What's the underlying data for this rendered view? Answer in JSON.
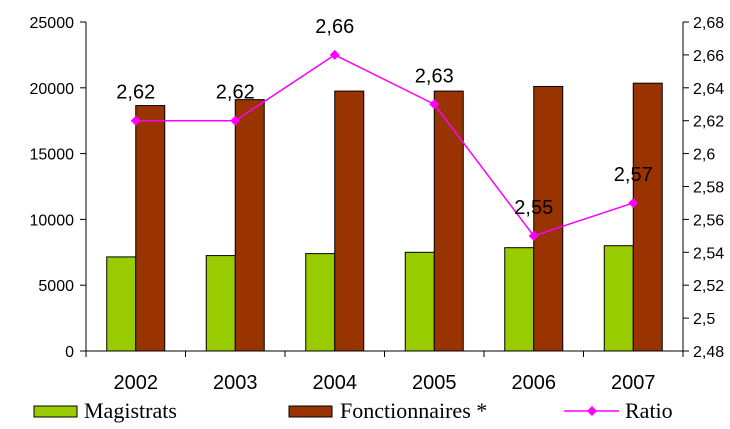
{
  "chart_data": {
    "type": "bar",
    "categories": [
      "2002",
      "2003",
      "2004",
      "2005",
      "2006",
      "2007"
    ],
    "series": [
      {
        "name": "Magistrats",
        "type": "bar",
        "axis": "left",
        "color": "#99cc00",
        "values": [
          7150,
          7250,
          7400,
          7500,
          7850,
          8000
        ]
      },
      {
        "name": "Fonctionnaires *",
        "type": "bar",
        "axis": "left",
        "color": "#993300",
        "values": [
          18650,
          19100,
          19750,
          19750,
          20100,
          20350
        ]
      },
      {
        "name": "Ratio",
        "type": "line",
        "axis": "right",
        "color": "#ff00ff",
        "marker": "diamond",
        "values": [
          2.62,
          2.62,
          2.66,
          2.63,
          2.55,
          2.57
        ],
        "labels": [
          "2,62",
          "2,62",
          "2,66",
          "2,63",
          "2,55",
          "2,57"
        ]
      }
    ],
    "ylim_left": [
      0,
      25000
    ],
    "yticks_left": [
      "0",
      "5000",
      "10000",
      "15000",
      "20000",
      "25000"
    ],
    "ylim_right": [
      2.48,
      2.68
    ],
    "yticks_right": [
      "2,48",
      "2,5",
      "2,52",
      "2,54",
      "2,56",
      "2,58",
      "2,6",
      "2,62",
      "2,64",
      "2,66",
      "2,68"
    ],
    "grid": false,
    "legend_position": "bottom"
  }
}
